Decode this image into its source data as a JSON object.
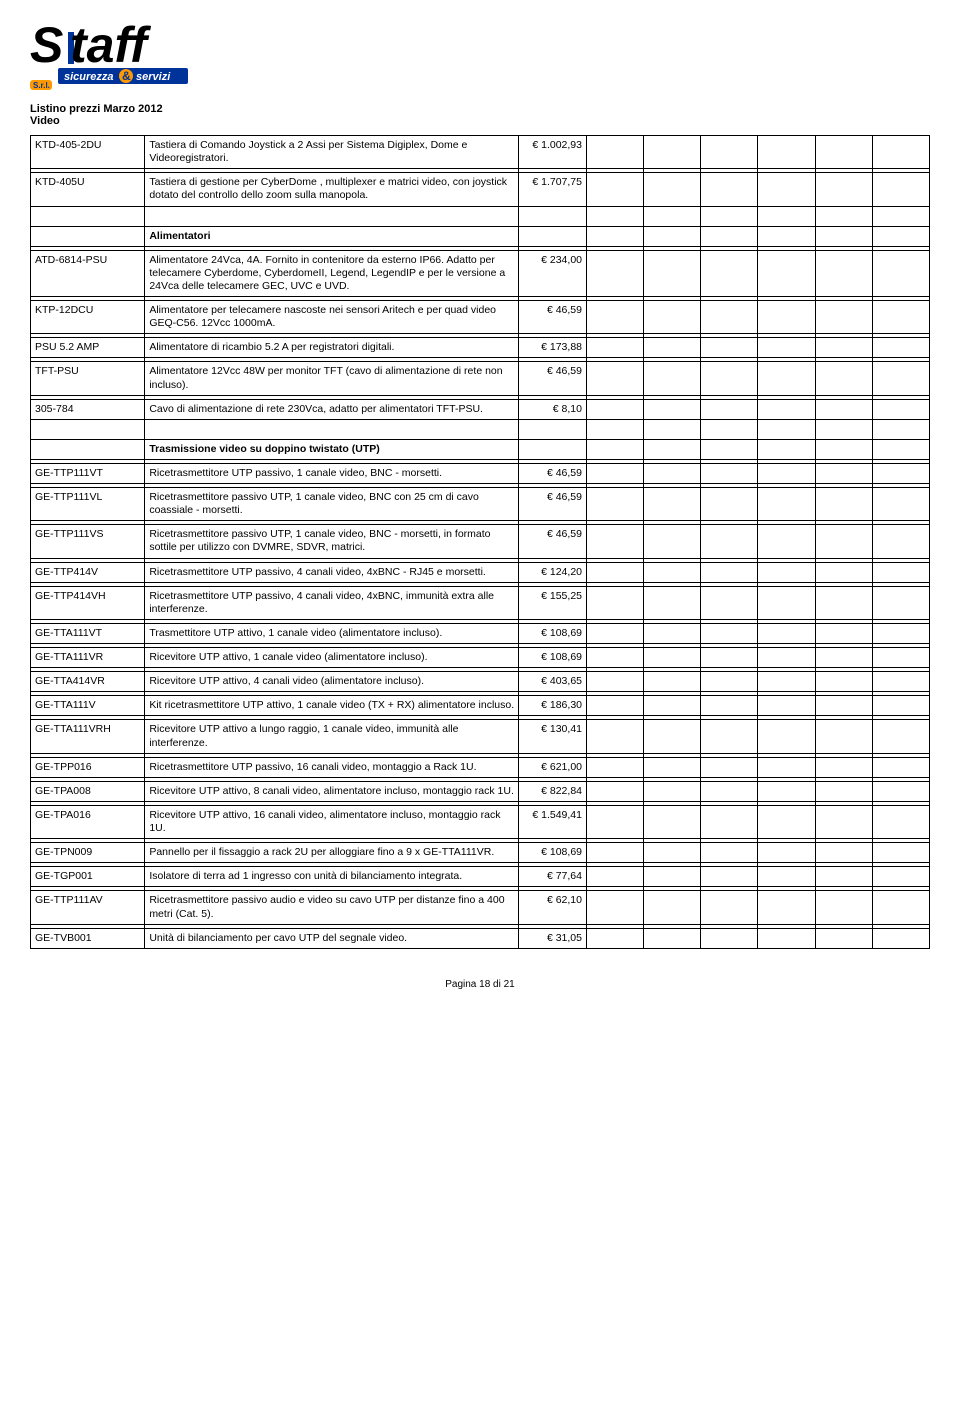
{
  "logo": {
    "main": "Staff",
    "sub_left": "sicurezza",
    "sub_amp": "&",
    "sub_right": "servizi"
  },
  "header": {
    "line1": "Listino prezzi Marzo 2012",
    "line2": "Video"
  },
  "sections": [
    {
      "header": null,
      "rows": [
        {
          "code": "KTD-405-2DU",
          "desc": "Tastiera di Comando Joystick a 2 Assi per Sistema Digiplex, Dome e Videoregistratori.",
          "price": "€ 1.002,93"
        },
        {
          "code": "KTD-405U",
          "desc": "Tastiera di gestione per CyberDome , multiplexer e matrici video, con joystick dotato del controllo dello zoom sulla manopola.",
          "price": "€ 1.707,75"
        }
      ]
    },
    {
      "header": "Alimentatori",
      "rows": [
        {
          "code": "ATD-6814-PSU",
          "desc": "Alimentatore 24Vca, 4A. Fornito in contenitore da esterno IP66. Adatto per telecamere Cyberdome, CyberdomeII, Legend, LegendIP e per le versione a 24Vca delle telecamere GEC, UVC e UVD.",
          "price": "€ 234,00"
        },
        {
          "code": "KTP-12DCU",
          "desc": "Alimentatore per telecamere nascoste nei sensori Aritech e per quad video GEQ-C56. 12Vcc 1000mA.",
          "price": "€ 46,59"
        },
        {
          "code": "PSU 5.2 AMP",
          "desc": "Alimentatore di ricambio 5.2 A per registratori digitali.",
          "price": "€ 173,88"
        },
        {
          "code": "TFT-PSU",
          "desc": "Alimentatore 12Vcc 48W per monitor TFT (cavo di alimentazione di rete non incluso).",
          "price": "€ 46,59"
        },
        {
          "code": "305-784",
          "desc": "Cavo di alimentazione di rete 230Vca, adatto per alimentatori TFT-PSU.",
          "price": "€ 8,10"
        }
      ]
    },
    {
      "header": "Trasmissione video su doppino twistato (UTP)",
      "rows": [
        {
          "code": "GE-TTP111VT",
          "desc": "Ricetrasmettitore UTP passivo, 1 canale video, BNC - morsetti.",
          "price": "€ 46,59"
        },
        {
          "code": "GE-TTP111VL",
          "desc": "Ricetrasmettitore passivo UTP, 1 canale video, BNC con 25 cm di cavo coassiale - morsetti.",
          "price": "€ 46,59"
        },
        {
          "code": "GE-TTP111VS",
          "desc": "Ricetrasmettitore passivo UTP, 1 canale video, BNC - morsetti, in formato sottile per utilizzo con DVMRE, SDVR, matrici.",
          "price": "€ 46,59"
        },
        {
          "code": "GE-TTP414V",
          "desc": "Ricetrasmettitore UTP passivo, 4 canali video, 4xBNC - RJ45 e morsetti.",
          "price": "€ 124,20"
        },
        {
          "code": "GE-TTP414VH",
          "desc": "Ricetrasmettitore UTP passivo, 4 canali video, 4xBNC, immunità extra alle interferenze.",
          "price": "€ 155,25"
        },
        {
          "code": "GE-TTA111VT",
          "desc": "Trasmettitore UTP attivo, 1 canale video (alimentatore incluso).",
          "price": "€ 108,69"
        },
        {
          "code": "GE-TTA111VR",
          "desc": "Ricevitore UTP attivo, 1 canale video (alimentatore incluso).",
          "price": "€ 108,69"
        },
        {
          "code": "GE-TTA414VR",
          "desc": "Ricevitore UTP attivo, 4 canali video (alimentatore incluso).",
          "price": "€ 403,65"
        },
        {
          "code": "GE-TTA111V",
          "desc": "Kit ricetrasmettitore UTP attivo, 1 canale video (TX + RX) alimentatore incluso.",
          "price": "€ 186,30"
        },
        {
          "code": "GE-TTA111VRH",
          "desc": "Ricevitore UTP attivo a lungo raggio, 1 canale video, immunità alle interferenze.",
          "price": "€ 130,41"
        },
        {
          "code": "GE-TPP016",
          "desc": "Ricetrasmettitore UTP passivo, 16 canali video, montaggio a Rack 1U.",
          "price": "€ 621,00"
        },
        {
          "code": "GE-TPA008",
          "desc": "Ricevitore UTP attivo, 8 canali video, alimentatore incluso, montaggio rack 1U.",
          "price": "€ 822,84"
        },
        {
          "code": "GE-TPA016",
          "desc": "Ricevitore UTP attivo, 16 canali video, alimentatore incluso, montaggio rack 1U.",
          "price": "€ 1.549,41"
        },
        {
          "code": "GE-TPN009",
          "desc": "Pannello per il fissaggio a rack 2U per alloggiare fino a 9 x GE-TTA111VR.",
          "price": "€ 108,69"
        },
        {
          "code": "GE-TGP001",
          "desc": "Isolatore di terra ad 1 ingresso con unità di bilanciamento integrata.",
          "price": "€ 77,64"
        },
        {
          "code": "GE-TTP111AV",
          "desc": "Ricetrasmettitore passivo audio e video su cavo UTP per distanze fino a 400 metri (Cat. 5).",
          "price": "€ 62,10"
        },
        {
          "code": "GE-TVB001",
          "desc": "Unità di bilanciamento per cavo UTP del segnale video.",
          "price": "€ 31,05"
        }
      ]
    }
  ],
  "footer": "Pagina 18 di 21"
}
